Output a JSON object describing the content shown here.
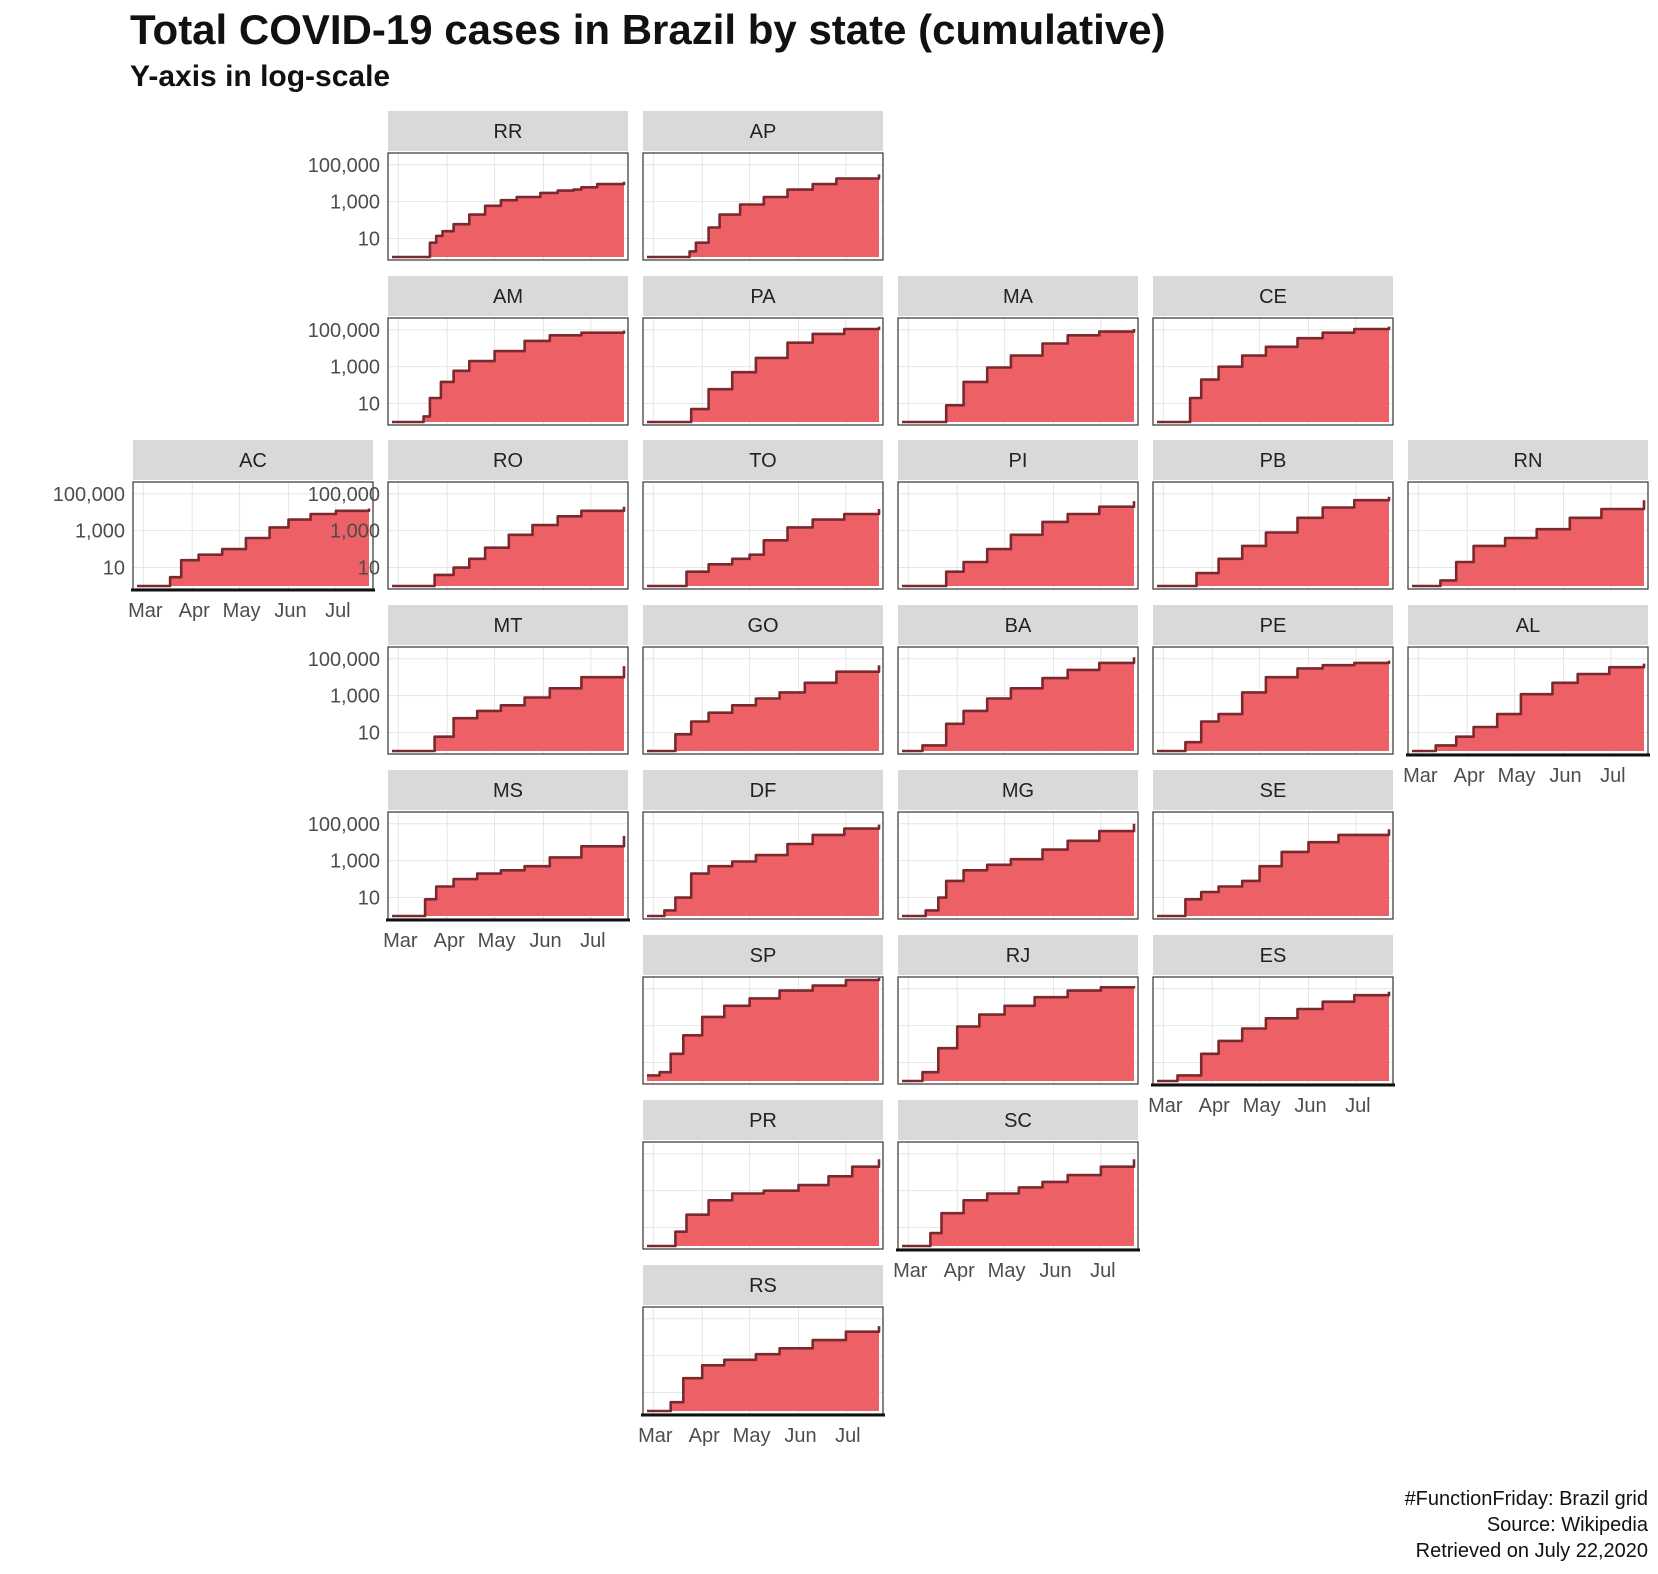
{
  "title": "Total COVID-19 cases in Brazil by state (cumulative)",
  "subtitle": "Y-axis in log-scale",
  "caption": [
    "#FunctionFriday: Brazil grid",
    "Source: Wikipedia",
    "Retrieved on July 22,2020"
  ],
  "colors": {
    "fill": "#ec6066",
    "line": "#7a2a2e",
    "strip": "#d9d9d9",
    "grid": "#e6e6e6",
    "frame": "#333333"
  },
  "chart_data": {
    "type": "area",
    "layout": "facet grid (Brazil geographic grid), cumulative cases",
    "y_scale": "log10",
    "y_ticks": [
      10,
      1000,
      100000
    ],
    "y_tick_labels": [
      "10",
      "1,000",
      "100,000"
    ],
    "ylim": [
      1,
      300000
    ],
    "x_tick_labels": [
      "Mar",
      "Apr",
      "May",
      "Jun",
      "Jul"
    ],
    "xlim": [
      "2020-02-26",
      "2020-07-22"
    ],
    "panels": [
      {
        "state": "RR",
        "grid_row": 1,
        "grid_col": 2,
        "shows_y_axis": true,
        "shows_x_axis": false,
        "x": [
          "2020-02-26",
          "2020-03-20",
          "2020-03-21",
          "2020-03-25",
          "2020-03-29",
          "2020-04-05",
          "2020-04-15",
          "2020-04-25",
          "2020-05-05",
          "2020-05-15",
          "2020-05-30",
          "2020-06-10",
          "2020-06-20",
          "2020-06-25",
          "2020-07-05",
          "2020-07-22"
        ],
        "values": [
          1,
          1,
          6,
          14,
          25,
          60,
          200,
          600,
          1200,
          1800,
          3000,
          4000,
          4500,
          6000,
          9000,
          12000
        ]
      },
      {
        "state": "AP",
        "grid_row": 1,
        "grid_col": 3,
        "shows_y_axis": false,
        "shows_x_axis": false,
        "x": [
          "2020-02-26",
          "2020-03-20",
          "2020-03-24",
          "2020-03-28",
          "2020-04-05",
          "2020-04-12",
          "2020-04-25",
          "2020-05-10",
          "2020-05-25",
          "2020-06-10",
          "2020-06-25",
          "2020-07-22"
        ],
        "values": [
          1,
          1,
          2,
          6,
          40,
          200,
          700,
          1800,
          4500,
          9000,
          18000,
          30000
        ]
      },
      {
        "state": "AM",
        "grid_row": 2,
        "grid_col": 2,
        "shows_y_axis": true,
        "shows_x_axis": false,
        "x": [
          "2020-02-26",
          "2020-03-13",
          "2020-03-17",
          "2020-03-21",
          "2020-03-28",
          "2020-04-05",
          "2020-04-15",
          "2020-05-01",
          "2020-05-20",
          "2020-06-05",
          "2020-06-25",
          "2020-07-22"
        ],
        "values": [
          1,
          1,
          2,
          20,
          150,
          600,
          2000,
          7000,
          25000,
          50000,
          70000,
          90000
        ]
      },
      {
        "state": "PA",
        "grid_row": 2,
        "grid_col": 3,
        "shows_y_axis": false,
        "shows_x_axis": false,
        "x": [
          "2020-02-26",
          "2020-03-18",
          "2020-03-25",
          "2020-04-05",
          "2020-04-20",
          "2020-05-05",
          "2020-05-25",
          "2020-06-10",
          "2020-06-30",
          "2020-07-22"
        ],
        "values": [
          1,
          1,
          5,
          60,
          500,
          3000,
          20000,
          60000,
          110000,
          150000
        ]
      },
      {
        "state": "MA",
        "grid_row": 2,
        "grid_col": 4,
        "shows_y_axis": false,
        "shows_x_axis": false,
        "x": [
          "2020-02-26",
          "2020-03-20",
          "2020-03-25",
          "2020-04-05",
          "2020-04-20",
          "2020-05-05",
          "2020-05-25",
          "2020-06-10",
          "2020-06-30",
          "2020-07-22"
        ],
        "values": [
          1,
          1,
          8,
          150,
          900,
          4000,
          18000,
          50000,
          80000,
          110000
        ]
      },
      {
        "state": "CE",
        "grid_row": 2,
        "grid_col": 5,
        "shows_y_axis": false,
        "shows_x_axis": false,
        "x": [
          "2020-02-26",
          "2020-03-15",
          "2020-03-18",
          "2020-03-25",
          "2020-04-05",
          "2020-04-20",
          "2020-05-05",
          "2020-05-25",
          "2020-06-10",
          "2020-06-30",
          "2020-07-22"
        ],
        "values": [
          1,
          1,
          20,
          200,
          1000,
          4000,
          12000,
          35000,
          70000,
          110000,
          150000
        ]
      },
      {
        "state": "AC",
        "grid_row": 3,
        "grid_col": 1,
        "shows_y_axis": true,
        "shows_x_axis": true,
        "x": [
          "2020-02-26",
          "2020-03-16",
          "2020-03-18",
          "2020-03-25",
          "2020-04-05",
          "2020-04-20",
          "2020-05-05",
          "2020-05-20",
          "2020-06-01",
          "2020-06-15",
          "2020-07-01",
          "2020-07-22"
        ],
        "values": [
          1,
          1,
          3,
          25,
          50,
          100,
          400,
          1500,
          4000,
          8000,
          12000,
          16000
        ]
      },
      {
        "state": "RO",
        "grid_row": 3,
        "grid_col": 2,
        "shows_y_axis": true,
        "shows_x_axis": false,
        "x": [
          "2020-02-26",
          "2020-03-20",
          "2020-03-24",
          "2020-04-05",
          "2020-04-15",
          "2020-04-25",
          "2020-05-10",
          "2020-05-25",
          "2020-06-10",
          "2020-06-25",
          "2020-07-22"
        ],
        "values": [
          1,
          1,
          4,
          10,
          30,
          120,
          600,
          2000,
          6000,
          12000,
          20000
        ]
      },
      {
        "state": "TO",
        "grid_row": 3,
        "grid_col": 3,
        "shows_y_axis": false,
        "shows_x_axis": false,
        "x": [
          "2020-02-26",
          "2020-03-18",
          "2020-03-22",
          "2020-04-05",
          "2020-04-20",
          "2020-05-01",
          "2020-05-10",
          "2020-05-25",
          "2020-06-10",
          "2020-06-30",
          "2020-07-22"
        ],
        "values": [
          1,
          1,
          6,
          15,
          30,
          50,
          300,
          1500,
          4000,
          8000,
          15000
        ]
      },
      {
        "state": "PI",
        "grid_row": 3,
        "grid_col": 4,
        "shows_y_axis": false,
        "shows_x_axis": false,
        "x": [
          "2020-02-26",
          "2020-03-20",
          "2020-03-25",
          "2020-04-05",
          "2020-04-20",
          "2020-05-05",
          "2020-05-25",
          "2020-06-10",
          "2020-06-30",
          "2020-07-22"
        ],
        "values": [
          1,
          1,
          6,
          20,
          100,
          600,
          3000,
          8000,
          20000,
          40000
        ]
      },
      {
        "state": "PB",
        "grid_row": 3,
        "grid_col": 5,
        "shows_y_axis": false,
        "shows_x_axis": false,
        "x": [
          "2020-02-26",
          "2020-03-18",
          "2020-03-22",
          "2020-04-05",
          "2020-04-20",
          "2020-05-05",
          "2020-05-25",
          "2020-06-10",
          "2020-06-30",
          "2020-07-22"
        ],
        "values": [
          1,
          1,
          5,
          30,
          150,
          800,
          5000,
          18000,
          45000,
          70000
        ]
      },
      {
        "state": "RN",
        "grid_row": 3,
        "grid_col": 6,
        "shows_y_axis": false,
        "shows_x_axis": false,
        "x": [
          "2020-02-26",
          "2020-03-12",
          "2020-03-15",
          "2020-03-25",
          "2020-04-05",
          "2020-04-25",
          "2020-05-15",
          "2020-06-05",
          "2020-06-25",
          "2020-07-22"
        ],
        "values": [
          1,
          1,
          2,
          20,
          150,
          400,
          1200,
          5000,
          15000,
          45000
        ]
      },
      {
        "state": "MT",
        "grid_row": 4,
        "grid_col": 2,
        "shows_y_axis": true,
        "shows_x_axis": false,
        "x": [
          "2020-02-26",
          "2020-03-20",
          "2020-03-24",
          "2020-04-05",
          "2020-04-20",
          "2020-05-05",
          "2020-05-20",
          "2020-06-05",
          "2020-06-25",
          "2020-07-22"
        ],
        "values": [
          1,
          1,
          6,
          60,
          150,
          300,
          800,
          2500,
          10000,
          40000
        ]
      },
      {
        "state": "GO",
        "grid_row": 4,
        "grid_col": 3,
        "shows_y_axis": false,
        "shows_x_axis": false,
        "x": [
          "2020-02-26",
          "2020-03-12",
          "2020-03-15",
          "2020-03-25",
          "2020-04-05",
          "2020-04-20",
          "2020-05-05",
          "2020-05-20",
          "2020-06-05",
          "2020-06-25",
          "2020-07-22"
        ],
        "values": [
          1,
          1,
          8,
          40,
          120,
          300,
          700,
          1500,
          5000,
          20000,
          45000
        ]
      },
      {
        "state": "BA",
        "grid_row": 4,
        "grid_col": 4,
        "shows_y_axis": false,
        "shows_x_axis": false,
        "x": [
          "2020-02-26",
          "2020-03-06",
          "2020-03-10",
          "2020-03-20",
          "2020-03-25",
          "2020-04-05",
          "2020-04-20",
          "2020-05-05",
          "2020-05-25",
          "2020-06-10",
          "2020-06-30",
          "2020-07-22"
        ],
        "values": [
          1,
          1,
          2,
          2,
          30,
          150,
          700,
          2500,
          9000,
          25000,
          60000,
          120000
        ]
      },
      {
        "state": "PE",
        "grid_row": 4,
        "grid_col": 5,
        "shows_y_axis": false,
        "shows_x_axis": false,
        "x": [
          "2020-02-26",
          "2020-03-12",
          "2020-03-15",
          "2020-03-25",
          "2020-04-05",
          "2020-04-20",
          "2020-05-05",
          "2020-05-25",
          "2020-06-10",
          "2020-06-30",
          "2020-07-22"
        ],
        "values": [
          1,
          1,
          3,
          40,
          100,
          1500,
          10000,
          30000,
          45000,
          60000,
          80000
        ]
      },
      {
        "state": "AL",
        "grid_row": 4,
        "grid_col": 6,
        "shows_y_axis": false,
        "shows_x_axis": true,
        "x": [
          "2020-02-26",
          "2020-03-08",
          "2020-03-12",
          "2020-03-18",
          "2020-03-25",
          "2020-04-05",
          "2020-04-20",
          "2020-05-05",
          "2020-05-25",
          "2020-06-10",
          "2020-06-30",
          "2020-07-22"
        ],
        "values": [
          1,
          1,
          2,
          2,
          6,
          20,
          100,
          1200,
          5000,
          15000,
          35000,
          55000
        ]
      },
      {
        "state": "MS",
        "grid_row": 5,
        "grid_col": 2,
        "shows_y_axis": true,
        "shows_x_axis": true,
        "x": [
          "2020-02-26",
          "2020-03-15",
          "2020-03-18",
          "2020-03-25",
          "2020-04-05",
          "2020-04-20",
          "2020-05-05",
          "2020-05-20",
          "2020-06-05",
          "2020-06-25",
          "2020-07-22"
        ],
        "values": [
          1,
          1,
          8,
          40,
          100,
          200,
          300,
          500,
          1500,
          6000,
          22000
        ]
      },
      {
        "state": "DF",
        "grid_row": 5,
        "grid_col": 3,
        "shows_y_axis": false,
        "shows_x_axis": false,
        "x": [
          "2020-02-26",
          "2020-03-05",
          "2020-03-08",
          "2020-03-15",
          "2020-03-25",
          "2020-04-05",
          "2020-04-20",
          "2020-05-05",
          "2020-05-25",
          "2020-06-10",
          "2020-06-30",
          "2020-07-22"
        ],
        "values": [
          1,
          1,
          2,
          10,
          200,
          500,
          900,
          2000,
          8000,
          25000,
          55000,
          90000
        ]
      },
      {
        "state": "MG",
        "grid_row": 5,
        "grid_col": 4,
        "shows_y_axis": false,
        "shows_x_axis": false,
        "x": [
          "2020-02-26",
          "2020-03-08",
          "2020-03-12",
          "2020-03-20",
          "2020-03-25",
          "2020-04-05",
          "2020-04-20",
          "2020-05-05",
          "2020-05-25",
          "2020-06-10",
          "2020-06-30",
          "2020-07-22"
        ],
        "values": [
          1,
          1,
          2,
          10,
          80,
          300,
          600,
          1200,
          4000,
          12000,
          40000,
          100000
        ]
      },
      {
        "state": "SE",
        "grid_row": 5,
        "grid_col": 5,
        "shows_y_axis": false,
        "shows_x_axis": false,
        "x": [
          "2020-02-26",
          "2020-03-12",
          "2020-03-15",
          "2020-03-25",
          "2020-04-05",
          "2020-04-20",
          "2020-05-01",
          "2020-05-15",
          "2020-06-01",
          "2020-06-20",
          "2020-07-22"
        ],
        "values": [
          1,
          1,
          8,
          20,
          40,
          80,
          500,
          3000,
          10000,
          25000,
          50000
        ]
      },
      {
        "state": "SP",
        "grid_row": 6,
        "grid_col": 3,
        "shows_y_axis": false,
        "shows_x_axis": false,
        "x": [
          "2020-02-26",
          "2020-03-05",
          "2020-03-12",
          "2020-03-20",
          "2020-04-01",
          "2020-04-15",
          "2020-05-01",
          "2020-05-20",
          "2020-06-10",
          "2020-07-01",
          "2020-07-22"
        ],
        "values": [
          2,
          3,
          30,
          300,
          3000,
          12000,
          30000,
          80000,
          150000,
          300000,
          400000
        ]
      },
      {
        "state": "RJ",
        "grid_row": 6,
        "grid_col": 4,
        "shows_y_axis": false,
        "shows_x_axis": false,
        "x": [
          "2020-02-26",
          "2020-03-05",
          "2020-03-10",
          "2020-03-20",
          "2020-04-01",
          "2020-04-15",
          "2020-05-01",
          "2020-05-20",
          "2020-06-10",
          "2020-07-01",
          "2020-07-22"
        ],
        "values": [
          1,
          1,
          3,
          60,
          900,
          4000,
          12000,
          35000,
          80000,
          120000,
          140000
        ]
      },
      {
        "state": "ES",
        "grid_row": 6,
        "grid_col": 5,
        "shows_y_axis": false,
        "shows_x_axis": true,
        "x": [
          "2020-02-26",
          "2020-03-06",
          "2020-03-10",
          "2020-03-20",
          "2020-03-25",
          "2020-04-05",
          "2020-04-20",
          "2020-05-05",
          "2020-05-25",
          "2020-06-10",
          "2020-06-30",
          "2020-07-22"
        ],
        "values": [
          1,
          1,
          2,
          2,
          30,
          150,
          700,
          2500,
          8000,
          20000,
          45000,
          70000
        ]
      },
      {
        "state": "PR",
        "grid_row": 7,
        "grid_col": 3,
        "shows_y_axis": false,
        "shows_x_axis": false,
        "x": [
          "2020-02-26",
          "2020-03-12",
          "2020-03-15",
          "2020-03-22",
          "2020-04-05",
          "2020-04-20",
          "2020-05-10",
          "2020-06-01",
          "2020-06-20",
          "2020-07-05",
          "2020-07-22"
        ],
        "values": [
          1,
          1,
          6,
          50,
          300,
          700,
          1000,
          2000,
          6000,
          20000,
          50000
        ]
      },
      {
        "state": "SC",
        "grid_row": 7,
        "grid_col": 4,
        "shows_y_axis": false,
        "shows_x_axis": true,
        "x": [
          "2020-02-26",
          "2020-03-12",
          "2020-03-15",
          "2020-03-22",
          "2020-04-05",
          "2020-04-20",
          "2020-05-10",
          "2020-05-25",
          "2020-06-10",
          "2020-07-01",
          "2020-07-22"
        ],
        "values": [
          1,
          1,
          5,
          60,
          300,
          700,
          1500,
          3000,
          7000,
          20000,
          50000
        ]
      },
      {
        "state": "RS",
        "grid_row": 8,
        "grid_col": 3,
        "shows_y_axis": false,
        "shows_x_axis": true,
        "x": [
          "2020-02-26",
          "2020-03-08",
          "2020-03-12",
          "2020-03-20",
          "2020-04-01",
          "2020-04-15",
          "2020-05-05",
          "2020-05-20",
          "2020-06-10",
          "2020-07-01",
          "2020-07-22"
        ],
        "values": [
          1,
          1,
          3,
          60,
          300,
          600,
          1200,
          2500,
          7000,
          20000,
          40000
        ]
      }
    ]
  }
}
